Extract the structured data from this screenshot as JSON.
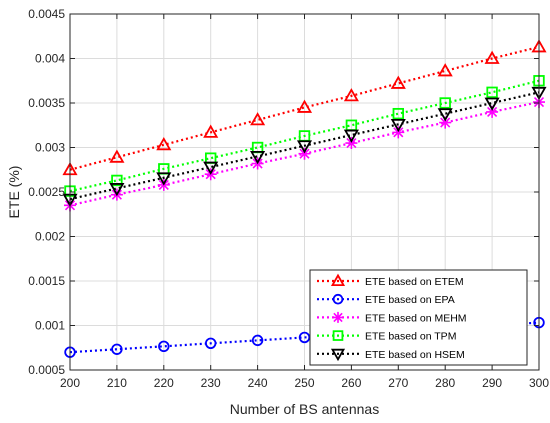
{
  "chart_data": {
    "type": "line",
    "title": "",
    "xlabel": "Number of BS antennas",
    "ylabel": "ETE (%)",
    "x": [
      200,
      210,
      220,
      230,
      240,
      250,
      260,
      270,
      280,
      290,
      300
    ],
    "xlim": [
      200,
      300
    ],
    "ylim": [
      0.0005,
      0.0045
    ],
    "xticks": [
      "200",
      "210",
      "220",
      "230",
      "240",
      "250",
      "260",
      "270",
      "280",
      "290",
      "300"
    ],
    "yticks": [
      "0.0005",
      "0.001",
      "0.0015",
      "0.002",
      "0.0025",
      "0.003",
      "0.0035",
      "0.004",
      "0.0045"
    ],
    "grid": true,
    "legend_position": "right",
    "series": [
      {
        "name": "ETE based on ETEM",
        "color": "#ff0000",
        "marker": "triangle-up",
        "values": [
          0.00275,
          0.00289,
          0.00303,
          0.00317,
          0.00331,
          0.00345,
          0.00358,
          0.00372,
          0.00386,
          0.004,
          0.00413
        ]
      },
      {
        "name": "ETE based on EPA",
        "color": "#0000ff",
        "marker": "circle",
        "values": [
          0.0007,
          0.000733,
          0.000766,
          0.0008,
          0.000833,
          0.000866,
          0.0009,
          0.000935,
          0.000968,
          0.001,
          0.001033
        ]
      },
      {
        "name": "ETE based on MEHM",
        "color": "#ff00ff",
        "marker": "asterisk",
        "values": [
          0.00235,
          0.00247,
          0.00258,
          0.0027,
          0.00282,
          0.00293,
          0.00305,
          0.00317,
          0.00328,
          0.0034,
          0.00351
        ]
      },
      {
        "name": "ETE based on TPM",
        "color": "#00ff00",
        "marker": "square",
        "values": [
          0.00251,
          0.00263,
          0.00276,
          0.00288,
          0.003,
          0.00313,
          0.00325,
          0.00338,
          0.0035,
          0.00362,
          0.00375
        ]
      },
      {
        "name": "ETE based on HSEM",
        "color": "#000000",
        "marker": "triangle-down",
        "values": [
          0.00242,
          0.00254,
          0.00266,
          0.00278,
          0.0029,
          0.00302,
          0.00314,
          0.00326,
          0.00338,
          0.0035,
          0.00362
        ]
      }
    ]
  }
}
